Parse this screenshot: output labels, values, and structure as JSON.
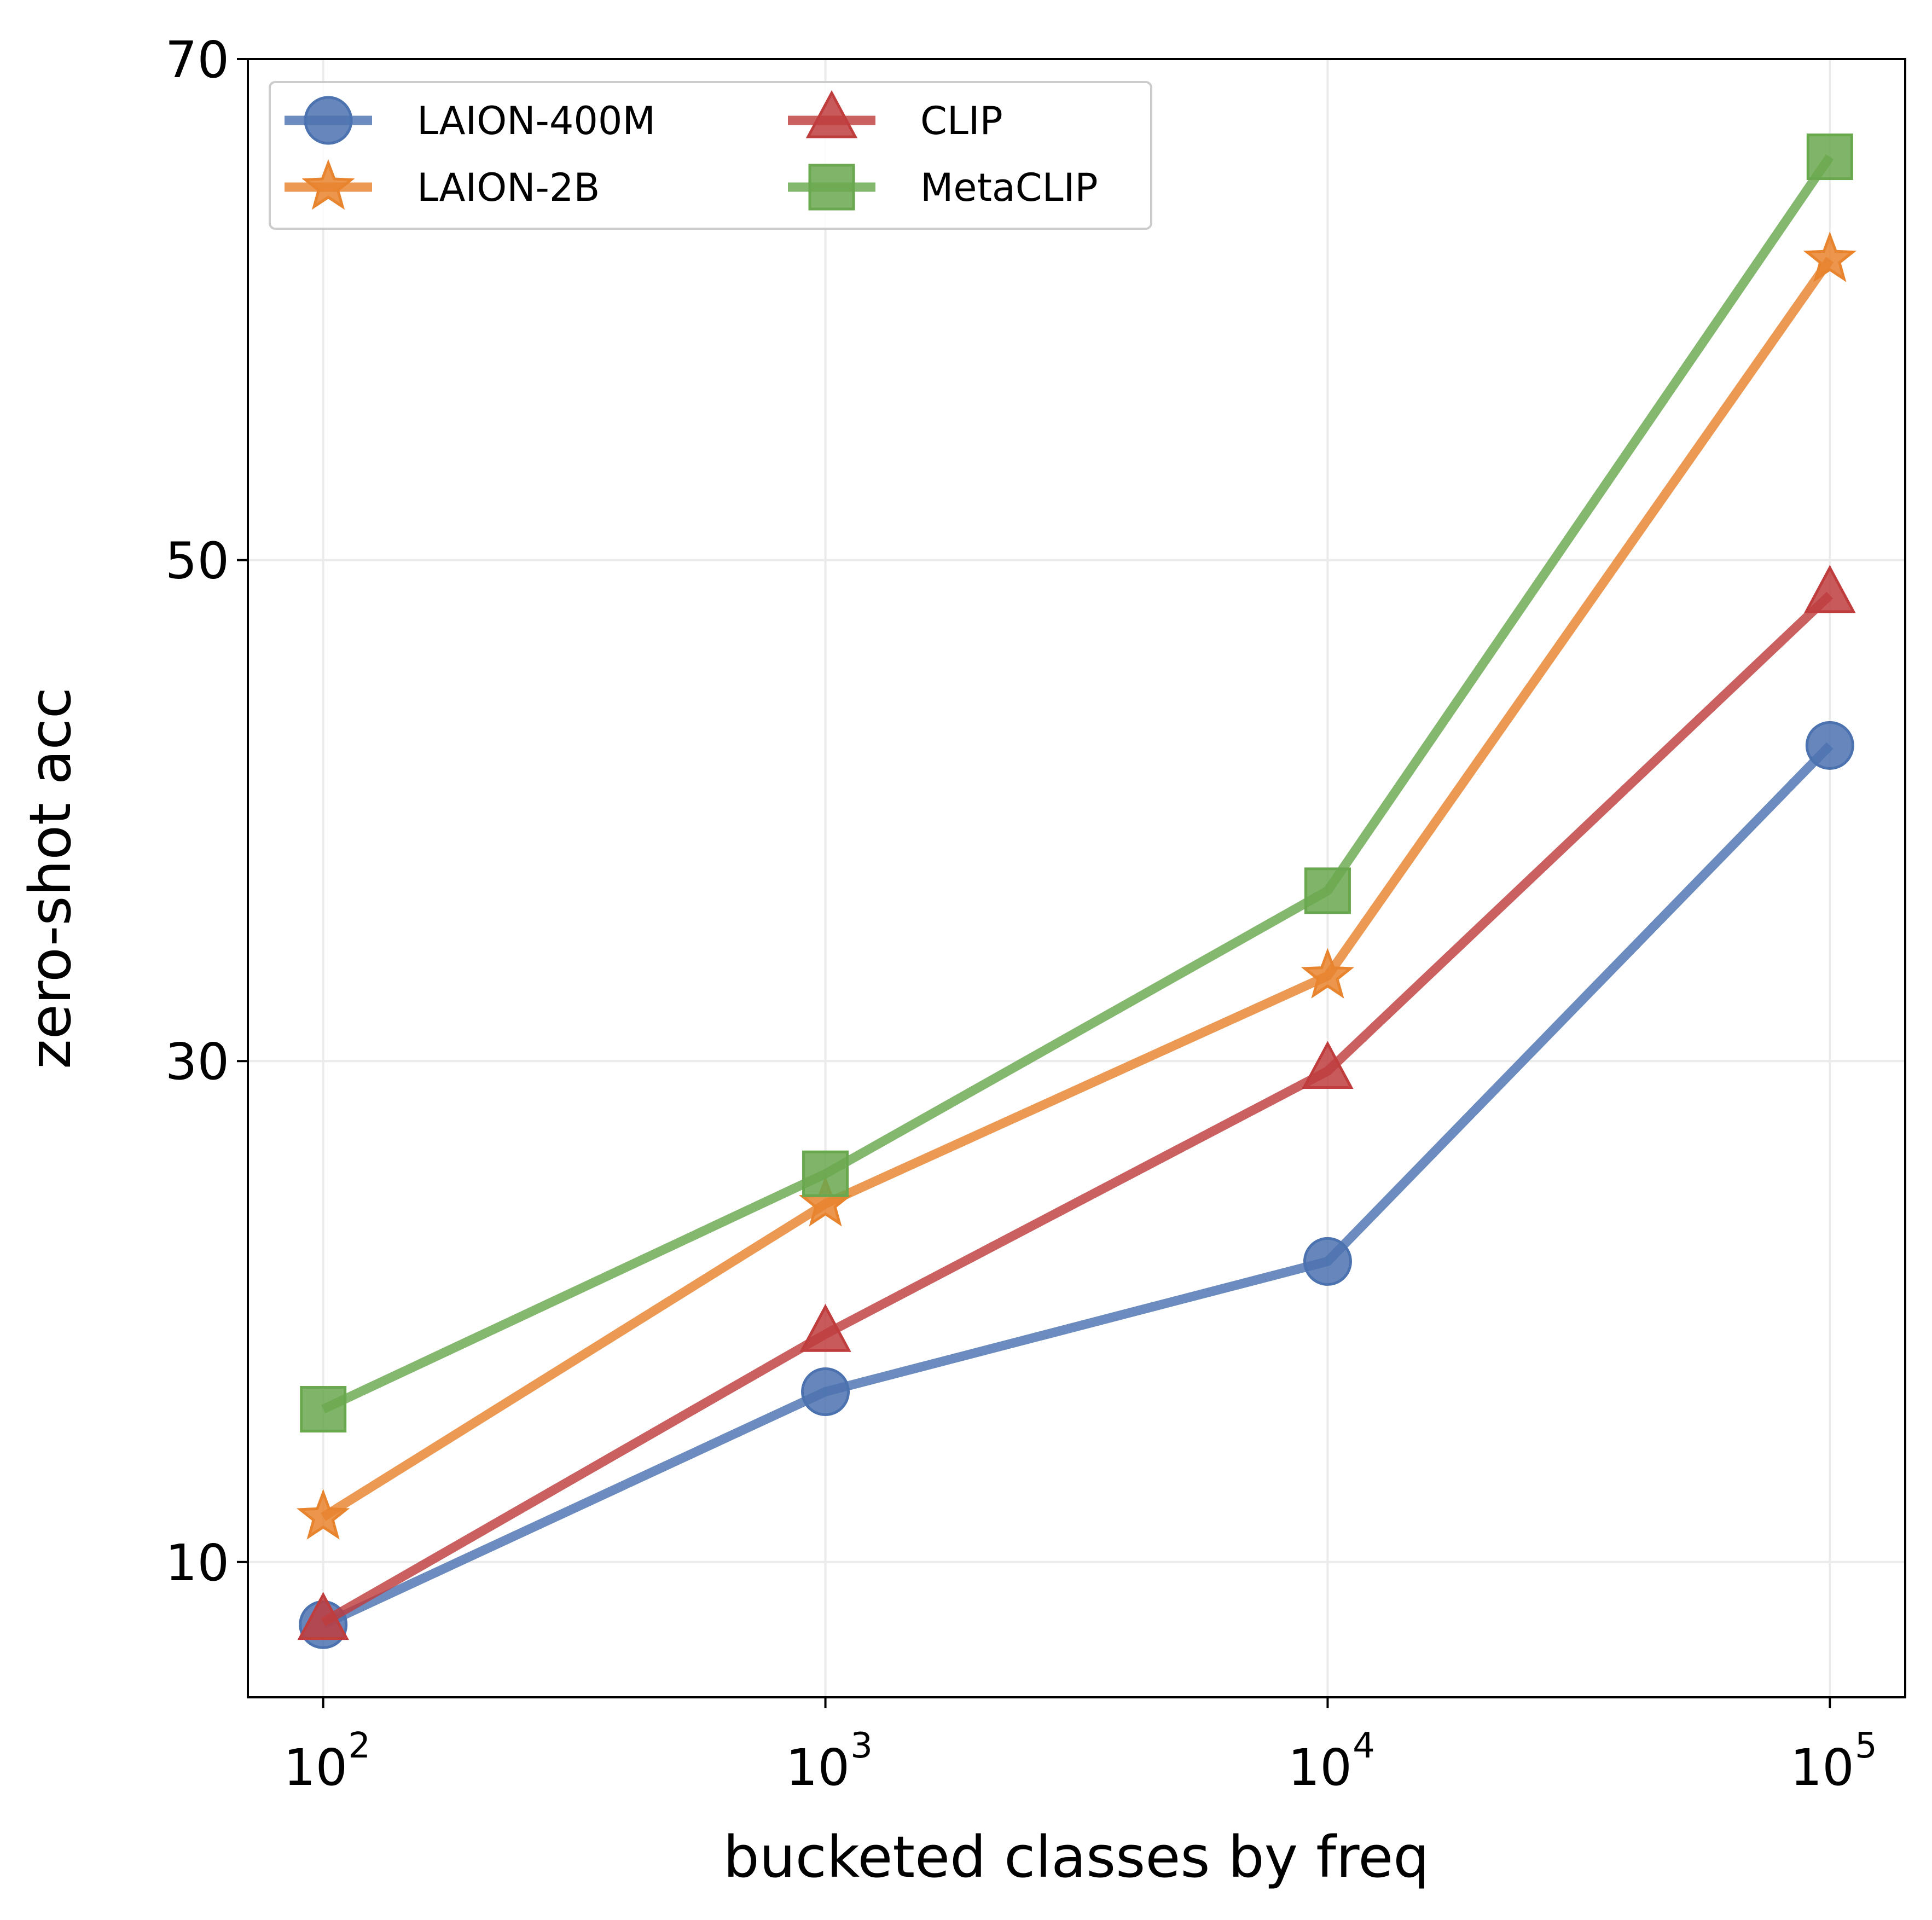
{
  "chart_data": {
    "type": "line",
    "title": "",
    "xlabel": "bucketed classes by freq",
    "ylabel": "zero-shot acc",
    "x_scale": "log",
    "x": [
      100,
      1000,
      10000,
      100000
    ],
    "x_tick_labels": [
      {
        "base": "10",
        "exp": "2"
      },
      {
        "base": "10",
        "exp": "3"
      },
      {
        "base": "10",
        "exp": "4"
      },
      {
        "base": "10",
        "exp": "5"
      }
    ],
    "y_ticks": [
      "10",
      "30",
      "50",
      "70"
    ],
    "ylim": [
      4.6,
      70
    ],
    "grid": true,
    "legend": {
      "placement": "top-left",
      "columns": 2
    },
    "series": [
      {
        "name": "LAION-400M",
        "color": "#4c72b0",
        "marker": "circle",
        "values": [
          7.5,
          16.8,
          22.0,
          42.6
        ]
      },
      {
        "name": "LAION-2B",
        "color": "#e8832e",
        "marker": "star",
        "values": [
          11.8,
          24.3,
          33.4,
          62.0
        ]
      },
      {
        "name": "CLIP",
        "color": "#c03d3e",
        "marker": "triangle",
        "values": [
          7.6,
          19.1,
          29.6,
          48.6
        ]
      },
      {
        "name": "MetaCLIP",
        "color": "#6aa84f",
        "marker": "square",
        "values": [
          16.1,
          25.5,
          36.8,
          66.1
        ]
      }
    ]
  }
}
